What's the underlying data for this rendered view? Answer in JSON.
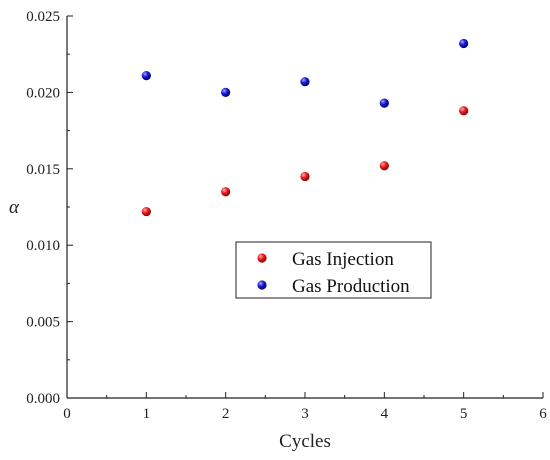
{
  "chart_data": {
    "type": "scatter",
    "xlabel": "Cycles",
    "ylabel": "α",
    "xlim": [
      0,
      6
    ],
    "ylim": [
      0,
      0.025
    ],
    "x_ticks": [
      "0",
      "1",
      "2",
      "3",
      "4",
      "5",
      "6"
    ],
    "y_ticks": [
      "0.000",
      "0.005",
      "0.010",
      "0.015",
      "0.020",
      "0.025"
    ],
    "grid": false,
    "legend_position": "center-right",
    "series": [
      {
        "name": "Gas Injection",
        "color": "#e8141a",
        "x": [
          1,
          2,
          3,
          4,
          5
        ],
        "y": [
          0.0122,
          0.0135,
          0.0145,
          0.0152,
          0.0188
        ]
      },
      {
        "name": "Gas Production",
        "color": "#1a1ad6",
        "x": [
          1,
          2,
          3,
          4,
          5
        ],
        "y": [
          0.0211,
          0.02,
          0.0207,
          0.0193,
          0.0232
        ]
      }
    ]
  }
}
